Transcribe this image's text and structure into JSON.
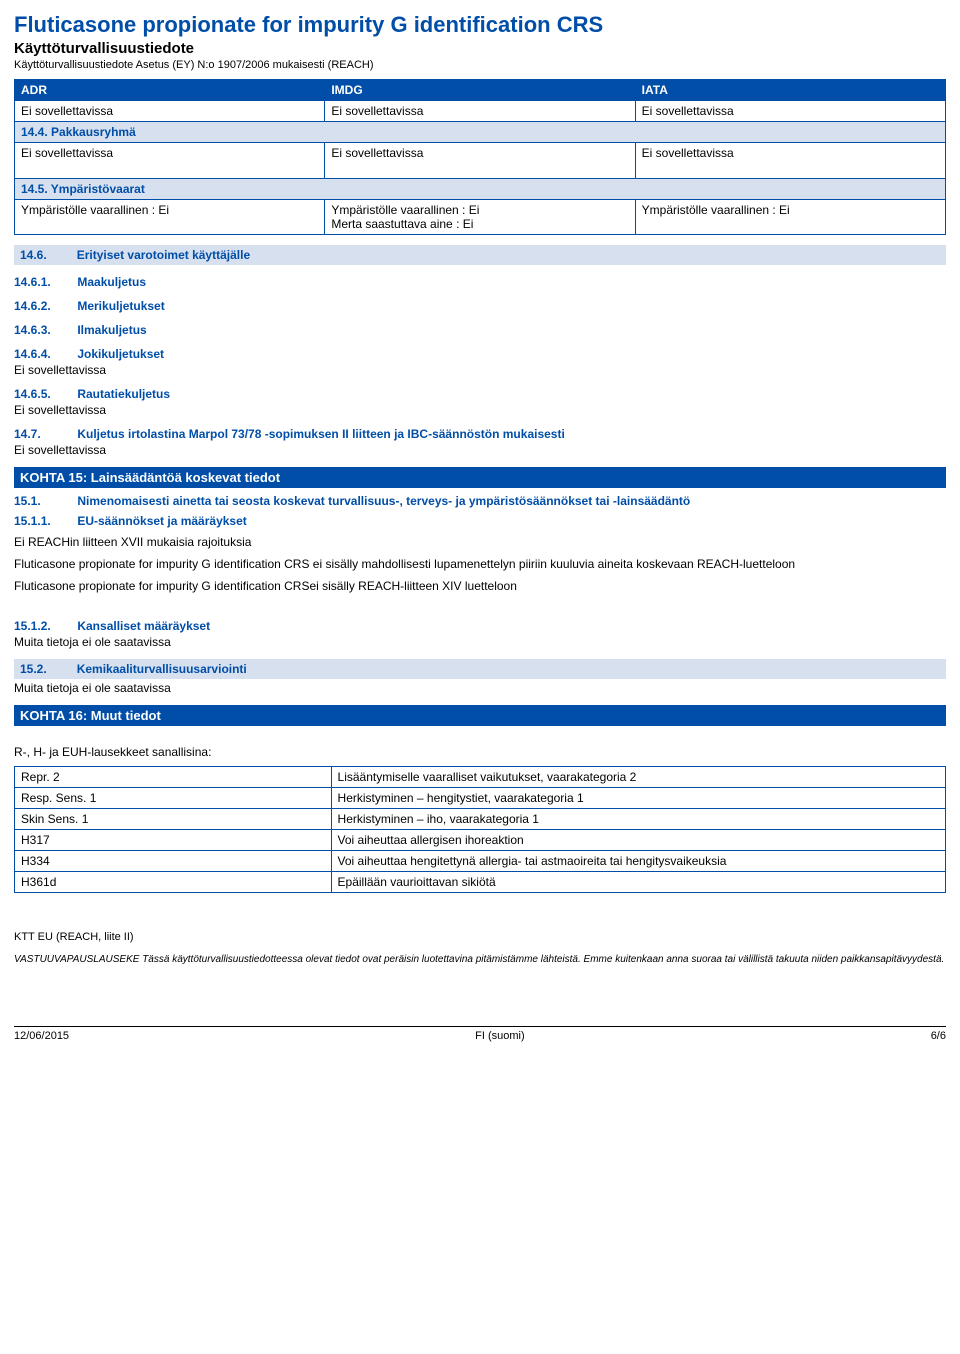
{
  "header": {
    "title": "Fluticasone propionate for impurity G identification CRS",
    "subtitle": "Käyttöturvallisuustiedote",
    "subnote": "Käyttöturvallisuustiedote Asetus (EY) N:o 1907/2006 mukaisesti (REACH)"
  },
  "transport_table": {
    "headers": [
      "ADR",
      "IMDG",
      "IATA"
    ],
    "row1": [
      "Ei sovellettavissa",
      "Ei sovellettavissa",
      "Ei sovellettavissa"
    ],
    "sub1": "14.4.    Pakkausryhmä",
    "row2": [
      "Ei sovellettavissa",
      "Ei sovellettavissa",
      "Ei sovellettavissa"
    ],
    "sub2": "14.5.    Ympäristövaarat",
    "row3": [
      "Ympäristölle vaarallinen : Ei",
      "Ympäristölle vaarallinen : Ei\nMerta saastuttava aine : Ei",
      "Ympäristölle vaarallinen : Ei"
    ]
  },
  "sec146": {
    "num": "14.6.",
    "label": "Erityiset varotoimet käyttäjälle"
  },
  "sub1461": {
    "num": "14.6.1.",
    "label": "Maakuljetus"
  },
  "sub1462": {
    "num": "14.6.2.",
    "label": "Merikuljetukset"
  },
  "sub1463": {
    "num": "14.6.3.",
    "label": "Ilmakuljetus"
  },
  "sub1464": {
    "num": "14.6.4.",
    "label": "Jokikuljetukset",
    "text": "Ei sovellettavissa"
  },
  "sub1465": {
    "num": "14.6.5.",
    "label": "Rautatiekuljetus",
    "text": "Ei sovellettavissa"
  },
  "sub147": {
    "num": "14.7.",
    "label": "Kuljetus irtolastina Marpol 73/78 -sopimuksen II liitteen ja IBC-säännöstön mukaisesti",
    "text": "Ei sovellettavissa"
  },
  "kohta15": {
    "title": "KOHTA 15: Lainsäädäntöä koskevat tiedot",
    "s151": {
      "num": "15.1.",
      "label": "Nimenomaisesti ainetta tai seosta koskevat turvallisuus-, terveys- ja ympäristösäännökset tai -lainsäädäntö"
    },
    "s1511": {
      "num": "15.1.1.",
      "label": "EU-säännökset ja määräykset"
    },
    "p1": "Ei REACHin liitteen XVII mukaisia rajoituksia",
    "p2": "Fluticasone propionate for impurity G identification CRS ei sisälly mahdollisesti lupamenettelyn piiriin kuuluvia aineita koskevaan REACH-luetteloon",
    "p3": "Fluticasone propionate for impurity G identification CRSei sisälly REACH-liitteen XIV luetteloon",
    "s1512": {
      "num": "15.1.2.",
      "label": "Kansalliset määräykset",
      "text": "Muita tietoja ei ole saatavissa"
    },
    "s152": {
      "num": "15.2.",
      "label": "Kemikaaliturvallisuusarviointi",
      "text": "Muita tietoja ei ole saatavissa"
    }
  },
  "kohta16": {
    "title": "KOHTA 16: Muut tiedot",
    "caption": "R-, H- ja EUH-lausekkeet sanallisina:",
    "rows": [
      [
        "Repr. 2",
        "Lisääntymiselle vaaralliset vaikutukset, vaarakategoria 2"
      ],
      [
        "Resp. Sens. 1",
        "Herkistyminen – hengitystiet, vaarakategoria 1"
      ],
      [
        "Skin Sens. 1",
        "Herkistyminen – iho, vaarakategoria 1"
      ],
      [
        "H317",
        "Voi aiheuttaa allergisen ihoreaktion"
      ],
      [
        "H334",
        "Voi aiheuttaa hengitettynä allergia- tai astmaoireita tai hengitysvaikeuksia"
      ],
      [
        "H361d",
        "Epäillään vaurioittavan sikiötä"
      ]
    ]
  },
  "ktt": "KTT EU (REACH, liite II)",
  "disclaimer": "VASTUUVAPAUSLAUSEKE Tässä käyttöturvallisuustiedotteessa olevat tiedot ovat peräisin luotettavina pitämistämme lähteistä. Emme kuitenkaan anna suoraa tai välillistä takuuta niiden paikkansapitävyydestä.",
  "footer": {
    "left": "12/06/2015",
    "center": "FI (suomi)",
    "right": "6/6"
  }
}
